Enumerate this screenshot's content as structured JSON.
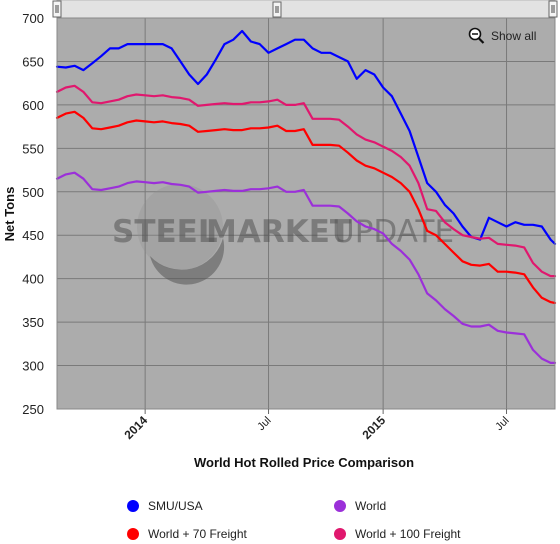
{
  "chart_data": {
    "type": "line",
    "title": "World Hot Rolled Price Comparison",
    "xlabel": "",
    "ylabel": "Net Tons",
    "ylim": [
      250,
      700
    ],
    "yticks": [
      250,
      300,
      350,
      400,
      450,
      500,
      550,
      600,
      650,
      700
    ],
    "xticks": [
      {
        "label": "2014",
        "pos": 11,
        "major": true
      },
      {
        "label": "Jul",
        "pos": 25,
        "major": false
      },
      {
        "label": "2015",
        "pos": 38,
        "major": true
      },
      {
        "label": "Jul",
        "pos": 52,
        "major": false
      }
    ],
    "xlim": [
      1,
      57.5
    ],
    "grid": true,
    "legend_position": "bottom",
    "series": [
      {
        "name": "SMU/USA",
        "color": "#0000ff",
        "x": [
          1,
          2,
          3,
          4,
          5,
          6,
          7,
          8,
          9,
          10,
          11,
          12,
          13,
          14,
          15,
          16,
          17,
          18,
          19,
          20,
          21,
          22,
          23,
          24,
          25,
          26,
          27,
          28,
          29,
          30,
          31,
          32,
          33,
          34,
          35,
          36,
          37,
          38,
          39,
          40,
          41,
          42,
          43,
          44,
          45,
          46,
          47,
          48,
          49,
          50,
          51,
          52,
          53,
          54,
          55,
          56,
          57,
          57.5
        ],
        "values": [
          644,
          643,
          645,
          640,
          648,
          656,
          665,
          665,
          670,
          670,
          670,
          670,
          670,
          665,
          650,
          635,
          624,
          635,
          652,
          670,
          675,
          685,
          673,
          670,
          660,
          665,
          670,
          675,
          675,
          665,
          660,
          660,
          655,
          650,
          630,
          640,
          635,
          620,
          610,
          590,
          570,
          540,
          510,
          500,
          485,
          475,
          460,
          448,
          445,
          470,
          465,
          460,
          465,
          462,
          462,
          460,
          445,
          440
        ]
      },
      {
        "name": "World + 100 Freight",
        "color": "#e0186e",
        "x": [
          1,
          2,
          3,
          4,
          5,
          6,
          7,
          8,
          9,
          10,
          11,
          12,
          13,
          14,
          15,
          16,
          17,
          18,
          19,
          20,
          21,
          22,
          23,
          24,
          25,
          26,
          27,
          28,
          29,
          30,
          31,
          32,
          33,
          34,
          35,
          36,
          37,
          38,
          39,
          40,
          41,
          42,
          43,
          44,
          45,
          46,
          47,
          48,
          49,
          50,
          51,
          52,
          53,
          54,
          55,
          56,
          57,
          57.5
        ],
        "values": [
          615,
          620,
          622,
          615,
          603,
          602,
          604,
          606,
          610,
          612,
          611,
          610,
          611,
          609,
          608,
          606,
          599,
          600,
          601,
          602,
          601,
          601,
          603,
          603,
          604,
          606,
          600,
          600,
          602,
          584,
          584,
          584,
          583,
          575,
          566,
          560,
          557,
          552,
          547,
          540,
          530,
          510,
          480,
          478,
          465,
          457,
          450,
          448,
          446,
          447,
          440,
          439,
          438,
          436,
          418,
          408,
          403,
          403
        ]
      },
      {
        "name": "World + 70 Freight",
        "color": "#ff0000",
        "x": [
          1,
          2,
          3,
          4,
          5,
          6,
          7,
          8,
          9,
          10,
          11,
          12,
          13,
          14,
          15,
          16,
          17,
          18,
          19,
          20,
          21,
          22,
          23,
          24,
          25,
          26,
          27,
          28,
          29,
          30,
          31,
          32,
          33,
          34,
          35,
          36,
          37,
          38,
          39,
          40,
          41,
          42,
          43,
          44,
          45,
          46,
          47,
          48,
          49,
          50,
          51,
          52,
          53,
          54,
          55,
          56,
          57,
          57.5
        ],
        "values": [
          585,
          590,
          592,
          585,
          573,
          572,
          574,
          576,
          580,
          582,
          581,
          580,
          581,
          579,
          578,
          576,
          569,
          570,
          571,
          572,
          571,
          571,
          573,
          573,
          574,
          576,
          570,
          570,
          572,
          554,
          554,
          554,
          553,
          545,
          536,
          530,
          527,
          522,
          517,
          510,
          500,
          480,
          455,
          450,
          440,
          430,
          420,
          416,
          415,
          417,
          408,
          408,
          407,
          405,
          390,
          378,
          373,
          372
        ]
      },
      {
        "name": "World",
        "color": "#9b30d9",
        "x": [
          1,
          2,
          3,
          4,
          5,
          6,
          7,
          8,
          9,
          10,
          11,
          12,
          13,
          14,
          15,
          16,
          17,
          18,
          19,
          20,
          21,
          22,
          23,
          24,
          25,
          26,
          27,
          28,
          29,
          30,
          31,
          32,
          33,
          34,
          35,
          36,
          37,
          38,
          39,
          40,
          41,
          42,
          43,
          44,
          45,
          46,
          47,
          48,
          49,
          50,
          51,
          52,
          53,
          54,
          55,
          56,
          57,
          57.5
        ],
        "values": [
          515,
          520,
          522,
          515,
          503,
          502,
          504,
          506,
          510,
          512,
          511,
          510,
          511,
          509,
          508,
          506,
          499,
          500,
          501,
          502,
          501,
          501,
          503,
          503,
          504,
          506,
          500,
          500,
          502,
          484,
          484,
          484,
          483,
          475,
          466,
          460,
          457,
          452,
          440,
          432,
          422,
          405,
          383,
          375,
          365,
          357,
          348,
          345,
          345,
          347,
          340,
          338,
          337,
          336,
          318,
          308,
          303,
          303
        ]
      }
    ]
  },
  "legend": {
    "items": [
      {
        "label": "SMU/USA",
        "color": "#0000ff"
      },
      {
        "label": "World",
        "color": "#9b30d9"
      },
      {
        "label": "World + 70 Freight",
        "color": "#ff0000"
      },
      {
        "label": "World + 100 Freight",
        "color": "#e0186e"
      }
    ]
  },
  "controls": {
    "show_all_label": "Show all",
    "zoom_icon": "magnifier-minus-icon",
    "navigator_handle_icon": "drag-handle-icon"
  },
  "watermark": {
    "line1a": "STEEL",
    "line1b": "MARKET",
    "line1c": "UPDATE"
  },
  "colors": {
    "plot_background": "#acacac",
    "gridline": "#7a7a7a",
    "navigator_bar": "#dcdcdc"
  }
}
